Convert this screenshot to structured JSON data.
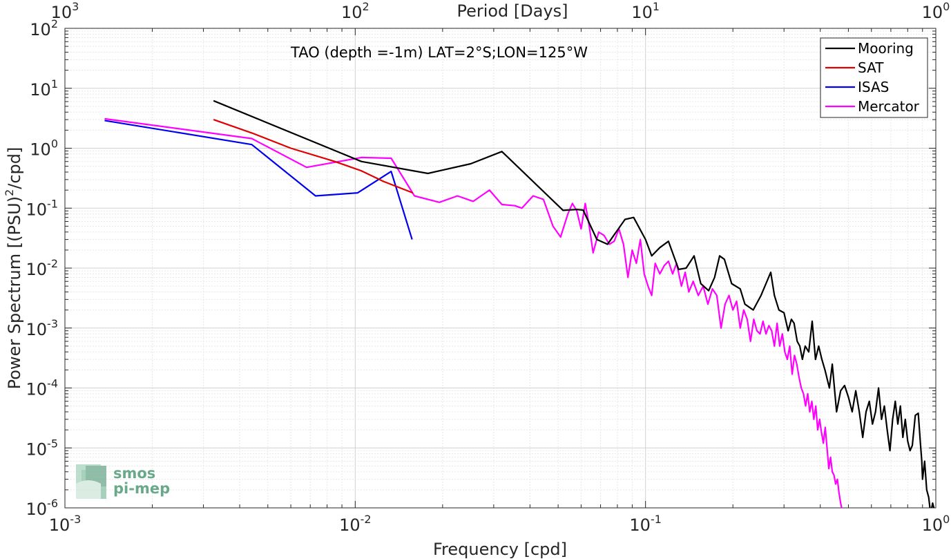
{
  "chart_data": {
    "type": "line",
    "title": "TAO (depth =-1m) LAT=2°S;LON=125°W",
    "xlabel": "Frequency [cpd]",
    "ylabel": "Power Spectrum [(PSU)",
    "ylabel_sup": "2",
    "ylabel_tail": "/cpd]",
    "top_xlabel": "Period [Days]",
    "xscale": "log",
    "yscale": "log",
    "xlim": [
      0.001,
      1
    ],
    "ylim": [
      1e-06,
      100
    ],
    "grid": true,
    "legend_position": "top-right",
    "x_ticks": [
      {
        "value": 0.001,
        "base": "10",
        "exp": "-3"
      },
      {
        "value": 0.01,
        "base": "10",
        "exp": "-2"
      },
      {
        "value": 0.1,
        "base": "10",
        "exp": "-1"
      },
      {
        "value": 1,
        "base": "10",
        "exp": "0"
      }
    ],
    "y_ticks": [
      {
        "value": 1e-06,
        "base": "10",
        "exp": "-6"
      },
      {
        "value": 1e-05,
        "base": "10",
        "exp": "-5"
      },
      {
        "value": 0.0001,
        "base": "10",
        "exp": "-4"
      },
      {
        "value": 0.001,
        "base": "10",
        "exp": "-3"
      },
      {
        "value": 0.01,
        "base": "10",
        "exp": "-2"
      },
      {
        "value": 0.1,
        "base": "10",
        "exp": "-1"
      },
      {
        "value": 1,
        "base": "10",
        "exp": "0"
      },
      {
        "value": 10,
        "base": "10",
        "exp": "1"
      },
      {
        "value": 100,
        "base": "10",
        "exp": "2"
      }
    ],
    "top_ticks": [
      {
        "value": 0.001,
        "base": "10",
        "exp": "3"
      },
      {
        "value": 0.01,
        "base": "10",
        "exp": "2"
      },
      {
        "value": 0.1,
        "base": "10",
        "exp": "1"
      },
      {
        "value": 1,
        "base": "10",
        "exp": "0"
      }
    ],
    "series": [
      {
        "name": "Mooring",
        "color": "#000000",
        "points": [
          [
            0.00325,
            6.2
          ],
          [
            0.0105,
            0.6
          ],
          [
            0.0178,
            0.38
          ],
          [
            0.025,
            0.55
          ],
          [
            0.032,
            0.88
          ],
          [
            0.052,
            0.092
          ],
          [
            0.058,
            0.095
          ],
          [
            0.061,
            0.093
          ],
          [
            0.068,
            0.03
          ],
          [
            0.074,
            0.025
          ],
          [
            0.085,
            0.065
          ],
          [
            0.091,
            0.07
          ],
          [
            0.1,
            0.03
          ],
          [
            0.105,
            0.016
          ],
          [
            0.112,
            0.022
          ],
          [
            0.12,
            0.028
          ],
          [
            0.13,
            0.0095
          ],
          [
            0.138,
            0.01
          ],
          [
            0.147,
            0.016
          ],
          [
            0.155,
            0.0055
          ],
          [
            0.165,
            0.0042
          ],
          [
            0.173,
            0.007
          ],
          [
            0.18,
            0.016
          ],
          [
            0.187,
            0.014
          ],
          [
            0.198,
            0.0055
          ],
          [
            0.212,
            0.0045
          ],
          [
            0.22,
            0.0025
          ],
          [
            0.235,
            0.002
          ],
          [
            0.25,
            0.0035
          ],
          [
            0.26,
            0.0055
          ],
          [
            0.27,
            0.0085
          ],
          [
            0.278,
            0.0035
          ],
          [
            0.288,
            0.002
          ],
          [
            0.3,
            0.0018
          ],
          [
            0.31,
            0.0009
          ],
          [
            0.318,
            0.0014
          ],
          [
            0.325,
            0.0012
          ],
          [
            0.333,
            0.0006
          ],
          [
            0.34,
            0.0005
          ],
          [
            0.347,
            0.0003
          ],
          [
            0.355,
            0.0005
          ],
          [
            0.365,
            0.0004
          ],
          [
            0.375,
            0.0013
          ],
          [
            0.385,
            0.0003
          ],
          [
            0.395,
            0.0005
          ],
          [
            0.405,
            0.0003
          ],
          [
            0.415,
            0.0002
          ],
          [
            0.43,
            0.0001
          ],
          [
            0.44,
            0.00025
          ],
          [
            0.455,
            4e-05
          ],
          [
            0.47,
            9e-05
          ],
          [
            0.485,
            0.00011
          ],
          [
            0.5,
            7e-05
          ],
          [
            0.515,
            4e-05
          ],
          [
            0.53,
            9e-05
          ],
          [
            0.545,
            4e-05
          ],
          [
            0.56,
            1.5e-05
          ],
          [
            0.575,
            4e-05
          ],
          [
            0.59,
            6e-05
          ],
          [
            0.605,
            2.5e-05
          ],
          [
            0.62,
            4e-05
          ],
          [
            0.635,
            0.0001
          ],
          [
            0.65,
            3e-05
          ],
          [
            0.665,
            5e-05
          ],
          [
            0.68,
            2e-05
          ],
          [
            0.695,
            9e-06
          ],
          [
            0.71,
            3e-05
          ],
          [
            0.725,
            6e-05
          ],
          [
            0.74,
            2.5e-05
          ],
          [
            0.755,
            5e-05
          ],
          [
            0.77,
            1.5e-05
          ],
          [
            0.785,
            3e-05
          ],
          [
            0.8,
            1.3e-05
          ],
          [
            0.815,
            9e-06
          ],
          [
            0.83,
            1.1e-05
          ],
          [
            0.85,
            3.5e-05
          ],
          [
            0.87,
            3.8e-05
          ],
          [
            0.885,
            1.2e-05
          ],
          [
            0.895,
            6e-06
          ],
          [
            0.9,
            3e-06
          ],
          [
            0.915,
            6e-06
          ],
          [
            0.93,
            2e-06
          ],
          [
            0.945,
            1.5e-06
          ],
          [
            0.96,
            8e-07
          ],
          [
            0.975,
            1.2e-06
          ],
          [
            0.99,
            9e-07
          ]
        ]
      },
      {
        "name": "SAT",
        "color": "#e00000",
        "points": [
          [
            0.00325,
            3.0
          ],
          [
            0.0044,
            1.8
          ],
          [
            0.006,
            1.0
          ],
          [
            0.0085,
            0.6
          ],
          [
            0.0105,
            0.42
          ],
          [
            0.0125,
            0.28
          ],
          [
            0.0158,
            0.18
          ]
        ]
      },
      {
        "name": "ISAS",
        "color": "#0000ee",
        "points": [
          [
            0.00137,
            2.9
          ],
          [
            0.0044,
            1.15
          ],
          [
            0.0073,
            0.16
          ],
          [
            0.0102,
            0.18
          ],
          [
            0.0133,
            0.41
          ],
          [
            0.0157,
            0.03
          ]
        ]
      },
      {
        "name": "Mercator",
        "color": "#ff00ff",
        "points": [
          [
            0.00137,
            3.1
          ],
          [
            0.0044,
            1.45
          ],
          [
            0.0068,
            0.48
          ],
          [
            0.0105,
            0.7
          ],
          [
            0.0133,
            0.68
          ],
          [
            0.016,
            0.16
          ],
          [
            0.0195,
            0.125
          ],
          [
            0.0225,
            0.16
          ],
          [
            0.0255,
            0.13
          ],
          [
            0.029,
            0.2
          ],
          [
            0.032,
            0.115
          ],
          [
            0.0355,
            0.11
          ],
          [
            0.0375,
            0.1
          ],
          [
            0.041,
            0.16
          ],
          [
            0.0445,
            0.14
          ],
          [
            0.048,
            0.05
          ],
          [
            0.051,
            0.033
          ],
          [
            0.054,
            0.08
          ],
          [
            0.056,
            0.12
          ],
          [
            0.058,
            0.09
          ],
          [
            0.06,
            0.045
          ],
          [
            0.062,
            0.12
          ],
          [
            0.064,
            0.05
          ],
          [
            0.066,
            0.018
          ],
          [
            0.069,
            0.04
          ],
          [
            0.072,
            0.035
          ],
          [
            0.075,
            0.025
          ],
          [
            0.078,
            0.028
          ],
          [
            0.081,
            0.045
          ],
          [
            0.084,
            0.025
          ],
          [
            0.087,
            0.007
          ],
          [
            0.09,
            0.02
          ],
          [
            0.093,
            0.012
          ],
          [
            0.096,
            0.03
          ],
          [
            0.099,
            0.008
          ],
          [
            0.102,
            0.005
          ],
          [
            0.105,
            0.0035
          ],
          [
            0.108,
            0.012
          ],
          [
            0.112,
            0.008
          ],
          [
            0.116,
            0.011
          ],
          [
            0.12,
            0.013
          ],
          [
            0.124,
            0.008
          ],
          [
            0.128,
            0.012
          ],
          [
            0.133,
            0.005
          ],
          [
            0.137,
            0.0085
          ],
          [
            0.141,
            0.004
          ],
          [
            0.146,
            0.006
          ],
          [
            0.152,
            0.0035
          ],
          [
            0.158,
            0.005
          ],
          [
            0.164,
            0.0025
          ],
          [
            0.17,
            0.0045
          ],
          [
            0.176,
            0.0035
          ],
          [
            0.182,
            0.001
          ],
          [
            0.188,
            0.0025
          ],
          [
            0.194,
            0.0035
          ],
          [
            0.2,
            0.002
          ],
          [
            0.206,
            0.0028
          ],
          [
            0.212,
            0.001
          ],
          [
            0.218,
            0.002
          ],
          [
            0.224,
            0.0014
          ],
          [
            0.23,
            0.0006
          ],
          [
            0.236,
            0.0014
          ],
          [
            0.242,
            0.0009
          ],
          [
            0.248,
            0.0008
          ],
          [
            0.254,
            0.0013
          ],
          [
            0.26,
            0.0008
          ],
          [
            0.266,
            0.0011
          ],
          [
            0.272,
            0.0009
          ],
          [
            0.278,
            0.0005
          ],
          [
            0.284,
            0.0012
          ],
          [
            0.29,
            0.0005
          ],
          [
            0.296,
            0.0008
          ],
          [
            0.302,
            0.0004
          ],
          [
            0.308,
            0.0003
          ],
          [
            0.314,
            0.0005
          ],
          [
            0.32,
            0.00017
          ],
          [
            0.326,
            0.00035
          ],
          [
            0.332,
            0.00025
          ],
          [
            0.338,
            0.00015
          ],
          [
            0.344,
            0.0001
          ],
          [
            0.35,
            8e-05
          ],
          [
            0.356,
            5e-05
          ],
          [
            0.362,
            8e-05
          ],
          [
            0.368,
            4e-05
          ],
          [
            0.374,
            6e-05
          ],
          [
            0.38,
            3e-05
          ],
          [
            0.386,
            5e-05
          ],
          [
            0.392,
            2e-05
          ],
          [
            0.398,
            3e-05
          ],
          [
            0.404,
            1.8e-05
          ],
          [
            0.41,
            1.2e-05
          ],
          [
            0.416,
            2.2e-05
          ],
          [
            0.422,
            1e-05
          ],
          [
            0.428,
            4.5e-06
          ],
          [
            0.434,
            7e-06
          ],
          [
            0.44,
            4e-06
          ],
          [
            0.446,
            3.5e-06
          ],
          [
            0.452,
            2.5e-06
          ],
          [
            0.458,
            3e-06
          ],
          [
            0.464,
            1.8e-06
          ],
          [
            0.47,
            1.2e-06
          ],
          [
            0.476,
            9e-07
          ]
        ]
      }
    ]
  },
  "logo": {
    "line1": "smos",
    "line2": "pi-mep",
    "color": "#6aa88a"
  }
}
